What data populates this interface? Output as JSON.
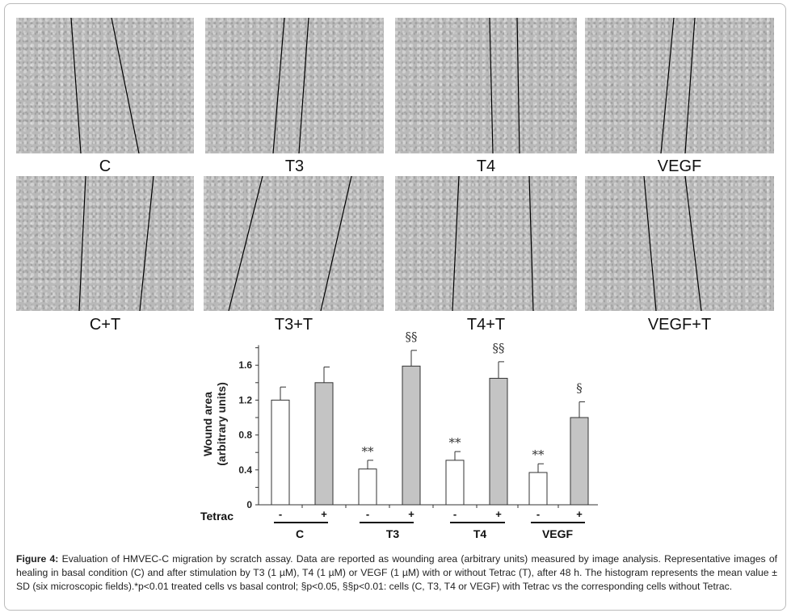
{
  "panels": [
    {
      "label": "C"
    },
    {
      "label": "T3"
    },
    {
      "label": "T4"
    },
    {
      "label": "VEGF"
    },
    {
      "label": "C+T"
    },
    {
      "label": "T3+T"
    },
    {
      "label": "T4+T"
    },
    {
      "label": "VEGF+T"
    }
  ],
  "chart_data": {
    "type": "bar",
    "ylabel": [
      "Wound area",
      "(arbitrary units)"
    ],
    "ylim": [
      0,
      1.83
    ],
    "yticks": [
      "0",
      "0.4",
      "0.8",
      "1.2",
      "1.6"
    ],
    "tetrac_label": "Tetrac",
    "groups": [
      "C",
      "T3",
      "T4",
      "VEGF"
    ],
    "bars": [
      {
        "group": "C",
        "tetrac": "-",
        "value": 1.2,
        "sd": 0.15,
        "annotation": ""
      },
      {
        "group": "C",
        "tetrac": "+",
        "value": 1.4,
        "sd": 0.18,
        "annotation": ""
      },
      {
        "group": "T3",
        "tetrac": "-",
        "value": 0.41,
        "sd": 0.1,
        "annotation": "**"
      },
      {
        "group": "T3",
        "tetrac": "+",
        "value": 1.59,
        "sd": 0.18,
        "annotation": "§§"
      },
      {
        "group": "T4",
        "tetrac": "-",
        "value": 0.51,
        "sd": 0.1,
        "annotation": "**"
      },
      {
        "group": "T4",
        "tetrac": "+",
        "value": 1.45,
        "sd": 0.19,
        "annotation": "§§"
      },
      {
        "group": "VEGF",
        "tetrac": "-",
        "value": 0.37,
        "sd": 0.1,
        "annotation": "**"
      },
      {
        "group": "VEGF",
        "tetrac": "+",
        "value": 1.0,
        "sd": 0.18,
        "annotation": "§"
      }
    ],
    "colors": {
      "without_tetrac": "#ffffff",
      "with_tetrac": "#c4c4c4"
    }
  },
  "caption": {
    "lead": "Figure 4:",
    "text": " Evaluation of HMVEC-C migration by scratch assay. Data are reported as wounding area (arbitrary units) measured by image analysis. Representative images of healing in basal condition (C) and after stimulation by T3 (1 µM), T4 (1 µM) or VEGF (1 µM) with or without Tetrac (T), after 48 h. The histogram represents the mean value ± SD (six microscopic fields).*p<0.01 treated cells vs basal control; §p<0.05, §§p<0.01: cells (C, T3, T4 or VEGF) with Tetrac vs the corresponding cells without Tetrac."
  }
}
